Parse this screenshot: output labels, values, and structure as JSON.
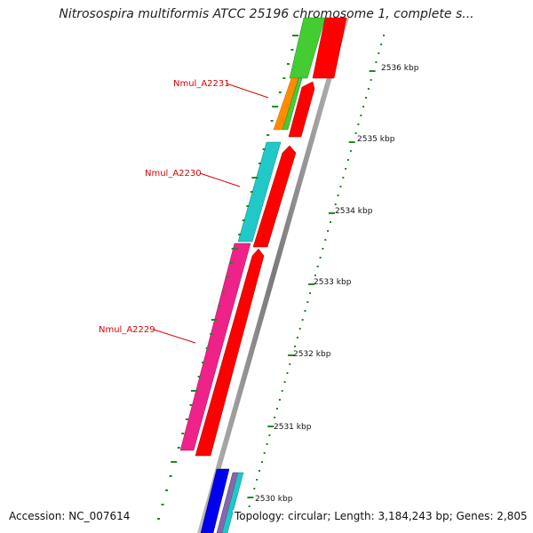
{
  "title": "Nitrosospira multiformis ATCC 25196 chromosome 1, complete s...",
  "genes": [
    {
      "name": "Nmul_A2231",
      "color": "#ff8c00"
    },
    {
      "name": "Nmul_A2230",
      "color": "#20c8c8"
    },
    {
      "name": "Nmul_A2229",
      "color": "#ee2288"
    }
  ],
  "scale": {
    "unit": "kbp",
    "ticks": [
      {
        "label": "2536 kbp"
      },
      {
        "label": "2535 kbp"
      },
      {
        "label": "2534 kbp"
      },
      {
        "label": "2533 kbp"
      },
      {
        "label": "2532 kbp"
      },
      {
        "label": "2531 kbp"
      },
      {
        "label": "2530 kbp"
      }
    ]
  },
  "footer": {
    "accession": "Accession: NC_007614",
    "topology": "Topology: circular; Length: 3,184,243 bp; Genes: 2,805"
  },
  "colors": {
    "forward_strand": "#ff0000",
    "backbone": "#888888",
    "tick": "#228822",
    "label": "#dd0000",
    "green_feature": "#44cc33",
    "blue_feature": "#0000ee"
  }
}
